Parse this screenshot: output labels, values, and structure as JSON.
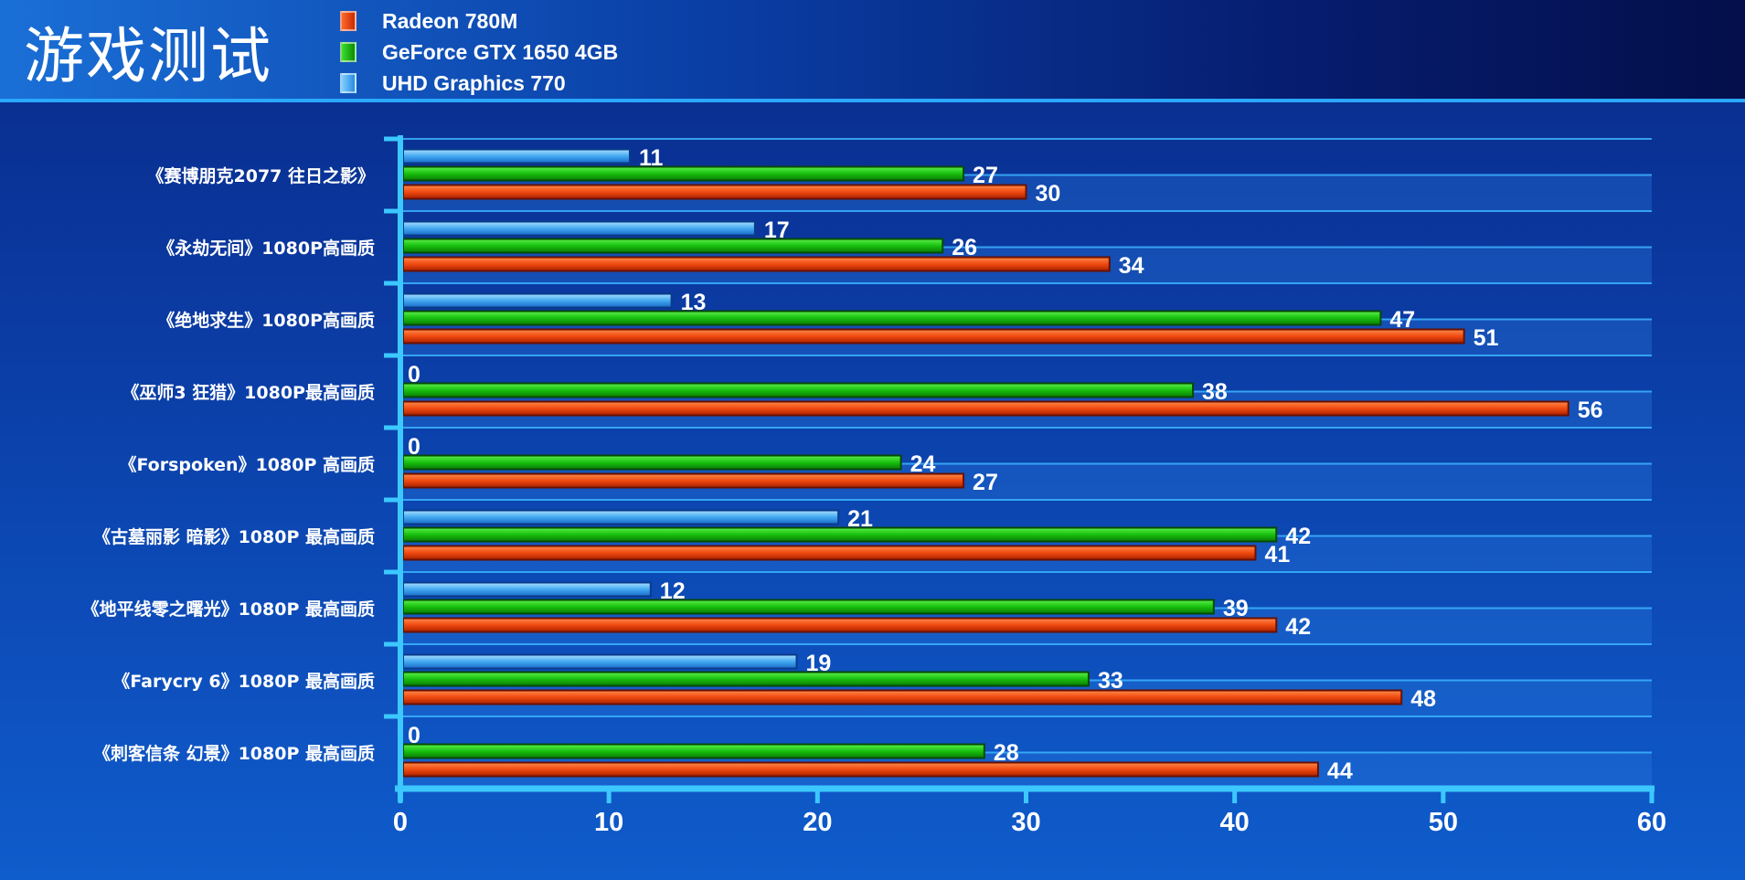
{
  "header": {
    "title": "游戏测试"
  },
  "colors": {
    "Radeon 780M": "#e8400c",
    "GeForce GTX 1650 4GB": "#16c00e",
    "UHD Graphics 770": "#3aa6f0"
  },
  "chart_data": {
    "type": "bar",
    "orientation": "horizontal",
    "title": "游戏测试",
    "categories": [
      "《赛博朋克2077 往日之影》",
      "《永劫无间》1080P高画质",
      "《绝地求生》1080P高画质",
      "《巫师3 狂猎》1080P最高画质",
      "《Forspoken》1080P 高画质",
      "《古墓丽影 暗影》1080P 最高画质",
      "《地平线零之曙光》1080P 最高画质",
      "《Farycry 6》1080P 最高画质",
      "《刺客信条 幻景》1080P 最高画质"
    ],
    "series": [
      {
        "name": "Radeon 780M",
        "values": [
          30,
          34,
          51,
          56,
          27,
          41,
          42,
          48,
          44
        ]
      },
      {
        "name": "GeForce GTX 1650 4GB",
        "values": [
          27,
          26,
          47,
          38,
          24,
          42,
          39,
          33,
          28
        ]
      },
      {
        "name": "UHD Graphics 770",
        "values": [
          11,
          17,
          13,
          0,
          0,
          21,
          12,
          19,
          0
        ]
      }
    ],
    "xlim": [
      0,
      60
    ],
    "x_ticks": [
      0,
      10,
      20,
      30,
      40,
      50,
      60
    ],
    "xlabel": "",
    "ylabel": "",
    "grid": true,
    "legend_position": "top"
  }
}
